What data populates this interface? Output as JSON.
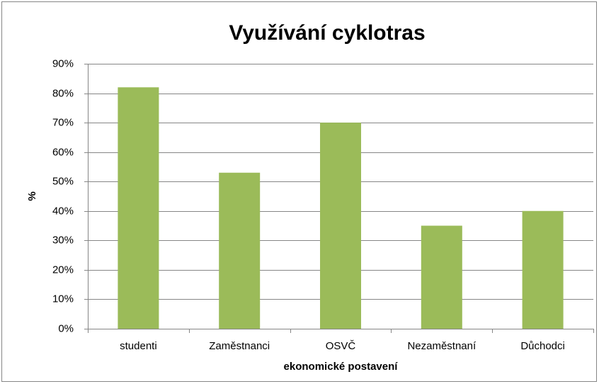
{
  "chart_data": {
    "type": "bar",
    "title": "Využívání cyklotras",
    "x_label": "ekonomické postavení",
    "y_label": "%",
    "categories": [
      "studenti",
      "Zaměstnanci",
      "OSVČ",
      "Nezaměstnaní",
      "Důchodci"
    ],
    "values": [
      82,
      53,
      70,
      35,
      40
    ],
    "color": "#9bbb59",
    "ylim": [
      0,
      90
    ],
    "yticks": [
      {
        "value": 0,
        "label": "0%"
      },
      {
        "value": 10,
        "label": "10%"
      },
      {
        "value": 20,
        "label": "20%"
      },
      {
        "value": 30,
        "label": "30%"
      },
      {
        "value": 40,
        "label": "40%"
      },
      {
        "value": 50,
        "label": "50%"
      },
      {
        "value": 60,
        "label": "60%"
      },
      {
        "value": 70,
        "label": "70%"
      },
      {
        "value": 80,
        "label": "80%"
      },
      {
        "value": 90,
        "label": "90%"
      }
    ],
    "grid": true
  }
}
